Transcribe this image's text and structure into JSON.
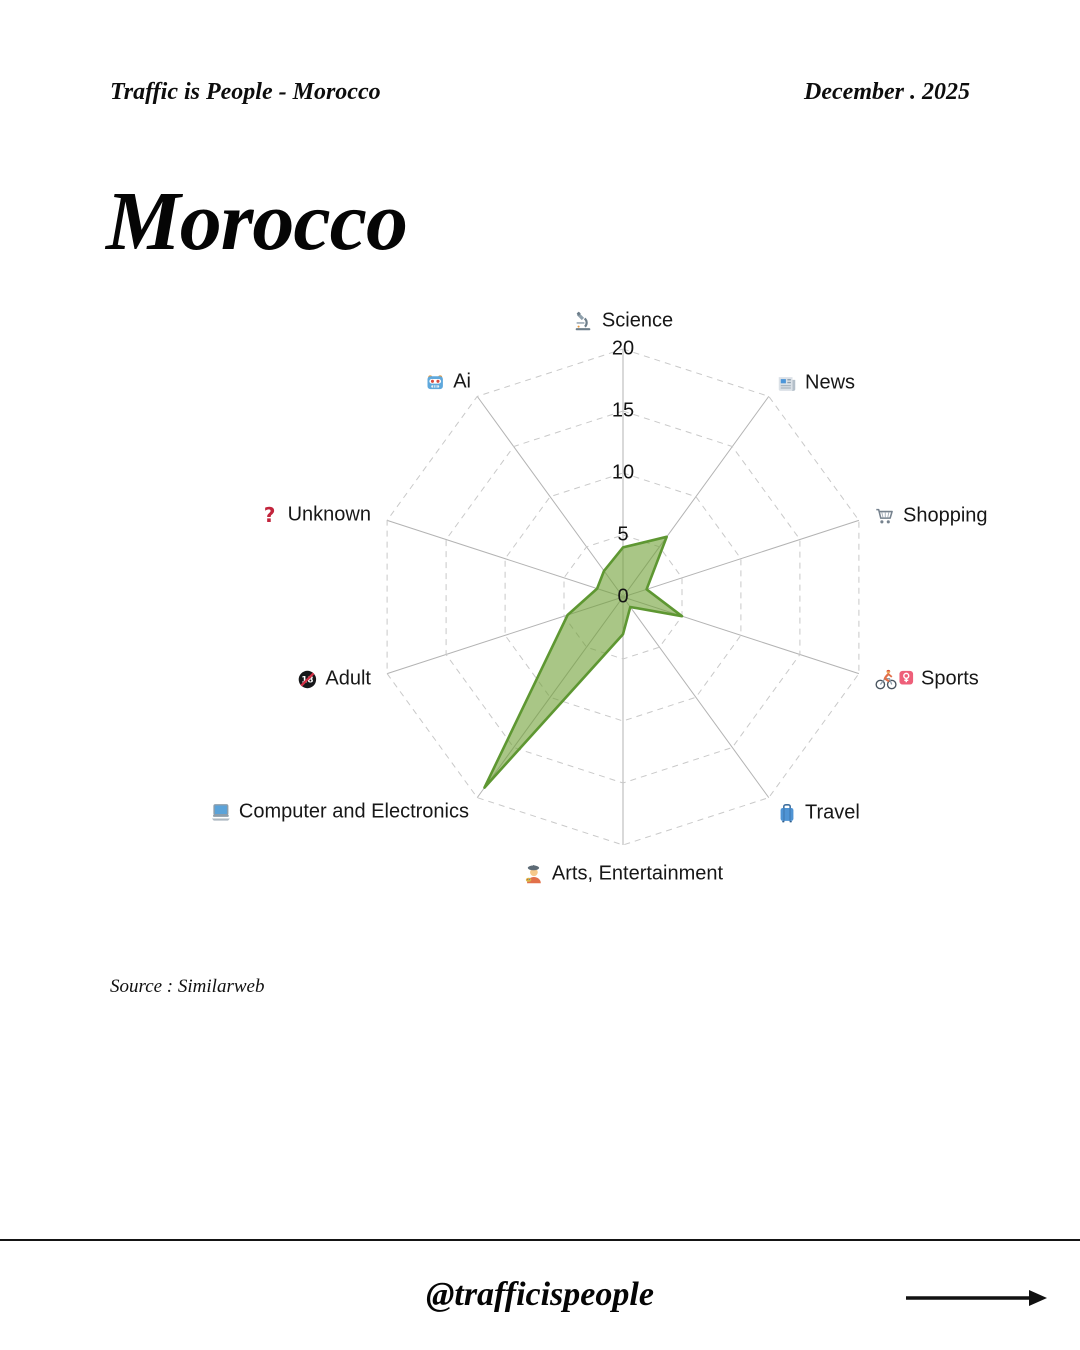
{
  "header": {
    "brand": "Traffic is People - Morocco",
    "date": "December . 2025",
    "title": "Morocco"
  },
  "chart_data": {
    "type": "radar",
    "title": "Morocco",
    "categories": [
      {
        "label": "Science",
        "emoji": "🔬",
        "icon": "microscope-icon"
      },
      {
        "label": "News",
        "emoji": "📰",
        "icon": "newspaper-icon"
      },
      {
        "label": "Shopping",
        "emoji": "🛒",
        "icon": "shopping-cart-icon"
      },
      {
        "label": "Sports",
        "emoji": "🚴‍♀️",
        "icon": "woman-biking-icon"
      },
      {
        "label": "Travel",
        "emoji": "🧳",
        "icon": "luggage-icon"
      },
      {
        "label": "Arts, Entertainment",
        "emoji": "🧑‍🎨",
        "icon": "artist-icon"
      },
      {
        "label": "Computer and Electronics",
        "emoji": "💻",
        "icon": "laptop-icon"
      },
      {
        "label": "Adult",
        "emoji": "🔞",
        "icon": "under-18-icon"
      },
      {
        "label": "Unknown",
        "emoji": "❓",
        "icon": "question-mark-icon"
      },
      {
        "label": "Ai",
        "emoji": "🤖",
        "icon": "robot-icon"
      }
    ],
    "values": [
      4,
      6,
      2,
      5,
      1,
      3,
      19,
      4.7,
      2.2,
      2.6
    ],
    "ticks": [
      0,
      5,
      10,
      15,
      20
    ],
    "r_max": 20,
    "axis_range": [
      0,
      20
    ],
    "grid": "4 dashed decagon rings at 5,10,15,20 with solid gray spokes",
    "legend": "none",
    "fill_color": "#70a035",
    "fill_opacity": 0.6,
    "stroke_color": "#5e9732",
    "spoke_color": "#b3b3b3",
    "ring_color": "#c9c9c9"
  },
  "source": "Source : Similarweb",
  "footer": {
    "handle": "@trafficispeople"
  }
}
